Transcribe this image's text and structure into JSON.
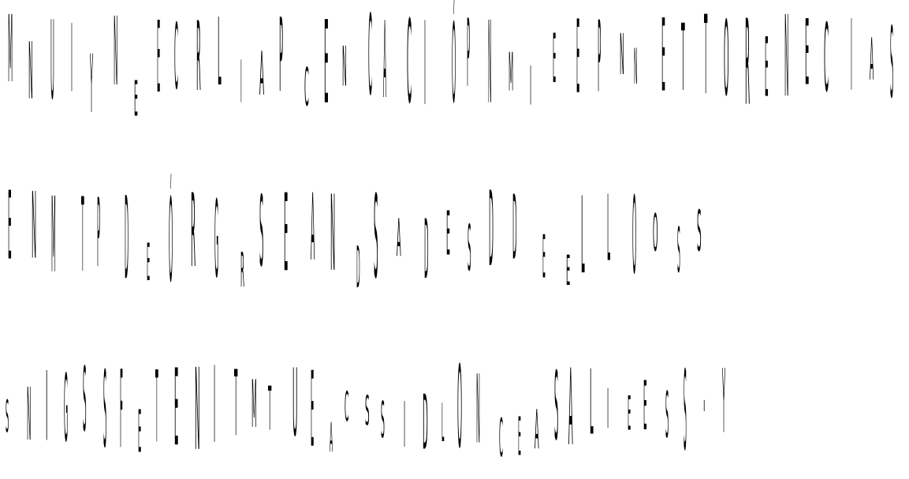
{
  "colors": {
    "background": "#ffffff",
    "ink": "#000000"
  },
  "lines": [
    {
      "glyphs": [
        "M",
        "N",
        "U",
        "I",
        "Y",
        "N",
        "E",
        "E",
        "C",
        "R",
        "L",
        "I",
        "A",
        "P",
        "C",
        "E",
        "N",
        "C",
        "A",
        "C",
        "I",
        "Ó",
        "P",
        "N",
        "M",
        "I",
        "E",
        "E",
        "P",
        "N",
        "N",
        "E",
        "T",
        "T",
        "O",
        "R",
        "E",
        "N",
        "E",
        "C",
        "I",
        "A",
        "S"
      ]
    },
    {
      "glyphs": [
        "E",
        "N",
        "M",
        "T",
        "P",
        "D",
        "E",
        "Ó",
        "R",
        "G",
        "R",
        "S",
        "E",
        "A",
        "N",
        "D",
        "S",
        "A",
        "D",
        "E",
        "S",
        "D",
        "D",
        "E",
        "E",
        "L",
        "L",
        "O",
        "O",
        "S",
        "S"
      ]
    },
    {
      "glyphs": [
        "S",
        "N",
        "I",
        "G",
        "S",
        "S",
        "F",
        "E",
        "T",
        "E",
        "N",
        "I",
        "T",
        "M",
        "T",
        "U",
        "E",
        "A",
        "C",
        "S",
        "S",
        "I",
        "D",
        "L",
        "O",
        "N",
        "C",
        "E",
        "A",
        "S",
        "A",
        "L",
        "I",
        "E",
        "E",
        "S",
        "S",
        "·",
        "Y"
      ]
    }
  ]
}
